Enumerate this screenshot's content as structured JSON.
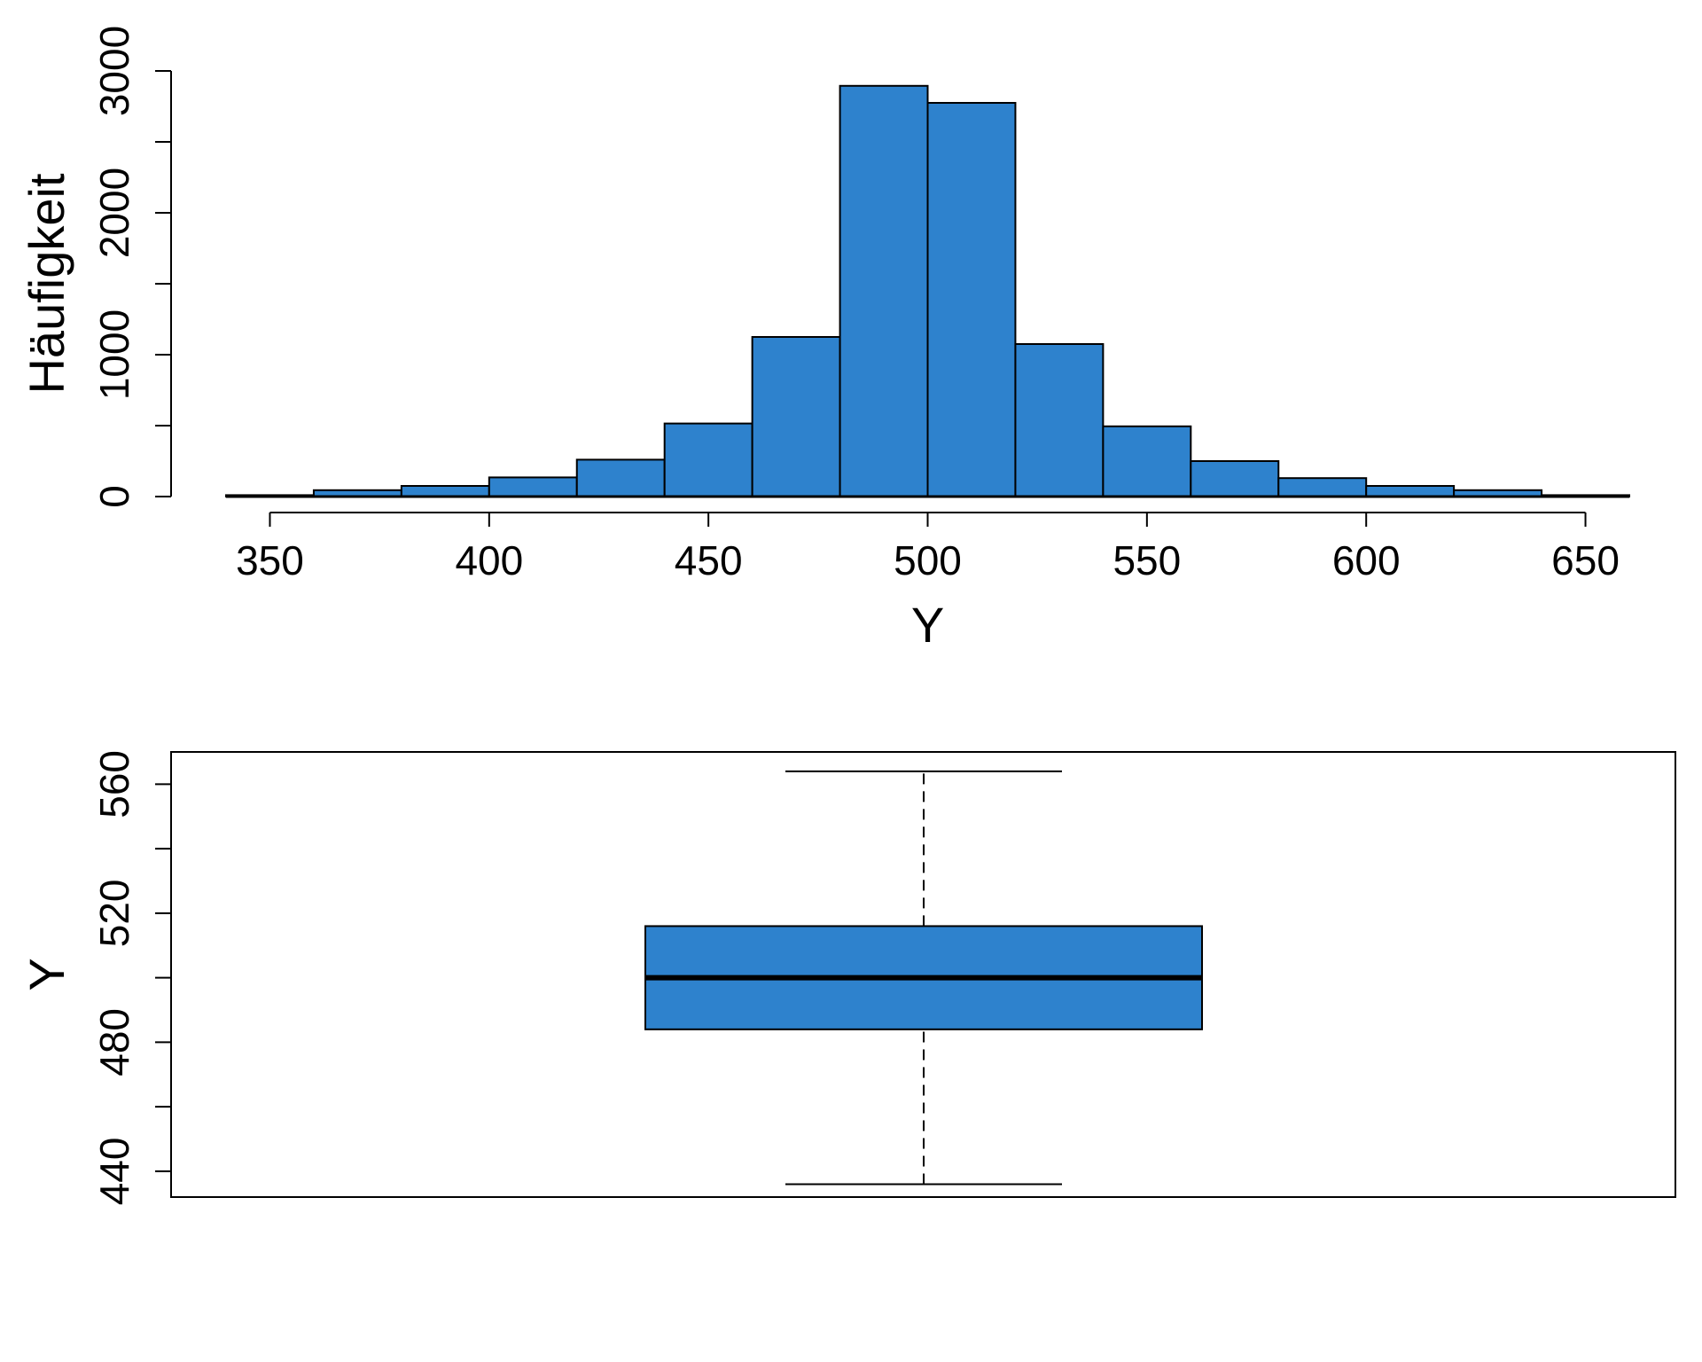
{
  "chart_data": [
    {
      "type": "histogram",
      "title": "",
      "xlabel": "Y",
      "ylabel": "Häufigkeit",
      "bin_edges": [
        340,
        360,
        380,
        400,
        420,
        440,
        460,
        480,
        500,
        520,
        540,
        560,
        580,
        600,
        620,
        640,
        660
      ],
      "counts": [
        10,
        45,
        75,
        135,
        260,
        515,
        1125,
        2895,
        2775,
        1075,
        495,
        250,
        130,
        75,
        45,
        10
      ],
      "xlim": [
        340,
        660
      ],
      "ylim": [
        0,
        3000
      ],
      "xticks": [
        350,
        400,
        450,
        500,
        550,
        600,
        650
      ],
      "yticks": [
        0,
        500,
        1000,
        1500,
        2000,
        2500,
        3000
      ],
      "ytick_labels": [
        "0",
        "",
        "1000",
        "",
        "2000",
        "",
        "3000"
      ],
      "bar_color": "#2e82cd",
      "edge_color": "#000000",
      "grid": false
    },
    {
      "type": "boxplot",
      "title": "",
      "ylabel": "Y",
      "whisker_low": 436,
      "q1": 484,
      "median": 500,
      "q3": 516,
      "whisker_high": 564,
      "ylim": [
        432,
        570
      ],
      "yticks": [
        440,
        460,
        480,
        500,
        520,
        540,
        560
      ],
      "ytick_labels": [
        "440",
        "",
        "480",
        "",
        "520",
        "",
        "560"
      ],
      "box_color": "#2e82cd",
      "grid": false
    }
  ]
}
